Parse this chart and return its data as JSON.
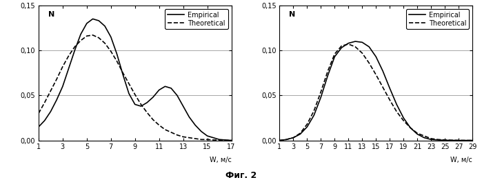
{
  "fig_title": "Фиг. 2",
  "plot1": {
    "xlim": [
      1,
      17
    ],
    "ylim": [
      0.0,
      0.15
    ],
    "xticks": [
      1,
      3,
      5,
      7,
      9,
      11,
      13,
      15,
      17
    ],
    "yticks": [
      0.0,
      0.05,
      0.1,
      0.15
    ],
    "ytick_labels": [
      "0,00",
      "0,05",
      "0,10",
      "0,15"
    ],
    "xlabel": "W, м/с",
    "ylabel": "N",
    "hlines": [
      0.05,
      0.1,
      0.15
    ],
    "empirical_x": [
      1.0,
      1.5,
      2.0,
      2.5,
      3.0,
      3.5,
      4.0,
      4.5,
      5.0,
      5.5,
      6.0,
      6.5,
      7.0,
      7.5,
      8.0,
      8.5,
      9.0,
      9.5,
      10.0,
      10.5,
      11.0,
      11.5,
      12.0,
      12.5,
      13.0,
      13.5,
      14.0,
      14.5,
      15.0,
      15.5,
      16.0,
      16.5,
      17.0
    ],
    "empirical_y": [
      0.015,
      0.022,
      0.032,
      0.045,
      0.06,
      0.08,
      0.1,
      0.118,
      0.13,
      0.135,
      0.133,
      0.127,
      0.115,
      0.096,
      0.073,
      0.052,
      0.04,
      0.038,
      0.042,
      0.048,
      0.056,
      0.06,
      0.058,
      0.05,
      0.038,
      0.026,
      0.017,
      0.01,
      0.005,
      0.003,
      0.001,
      0.0005,
      0.0
    ],
    "theoretical_x": [
      1.0,
      1.5,
      2.0,
      2.5,
      3.0,
      3.5,
      4.0,
      4.5,
      5.0,
      5.5,
      6.0,
      6.5,
      7.0,
      7.5,
      8.0,
      8.5,
      9.0,
      9.5,
      10.0,
      10.5,
      11.0,
      11.5,
      12.0,
      12.5,
      13.0,
      13.5,
      14.0,
      14.5,
      15.0,
      15.5,
      16.0,
      16.5,
      17.0
    ],
    "theoretical_y": [
      0.03,
      0.042,
      0.055,
      0.068,
      0.082,
      0.094,
      0.104,
      0.111,
      0.116,
      0.117,
      0.114,
      0.108,
      0.099,
      0.088,
      0.075,
      0.063,
      0.051,
      0.04,
      0.031,
      0.023,
      0.017,
      0.012,
      0.009,
      0.006,
      0.004,
      0.003,
      0.002,
      0.001,
      0.001,
      0.0005,
      0.0003,
      0.0001,
      0.0
    ]
  },
  "plot2": {
    "xlim": [
      1,
      29
    ],
    "ylim": [
      0.0,
      0.15
    ],
    "xticks": [
      1,
      3,
      5,
      7,
      9,
      11,
      13,
      15,
      17,
      19,
      21,
      23,
      25,
      27,
      29
    ],
    "yticks": [
      0.0,
      0.05,
      0.1,
      0.15
    ],
    "ytick_labels": [
      "0,00",
      "0,05",
      "0,10",
      "0,15"
    ],
    "xlabel": "W, м/с",
    "ylabel": "N",
    "hlines": [
      0.05,
      0.1,
      0.15
    ],
    "empirical_x": [
      1,
      2,
      3,
      4,
      5,
      6,
      7,
      8,
      9,
      10,
      11,
      12,
      13,
      14,
      15,
      16,
      17,
      18,
      19,
      20,
      21,
      22,
      23,
      24,
      25,
      26,
      27,
      28,
      29
    ],
    "empirical_y": [
      0.0,
      0.001,
      0.003,
      0.007,
      0.015,
      0.028,
      0.048,
      0.072,
      0.093,
      0.103,
      0.108,
      0.11,
      0.109,
      0.104,
      0.093,
      0.077,
      0.058,
      0.04,
      0.025,
      0.014,
      0.007,
      0.003,
      0.001,
      0.0005,
      0.0002,
      0.0001,
      0.0,
      0.0,
      0.0
    ],
    "theoretical_x": [
      1,
      2,
      3,
      4,
      5,
      6,
      7,
      8,
      9,
      10,
      11,
      12,
      13,
      14,
      15,
      16,
      17,
      18,
      19,
      20,
      21,
      22,
      23,
      24,
      25,
      26,
      27,
      28,
      29
    ],
    "theoretical_y": [
      0.0,
      0.001,
      0.003,
      0.008,
      0.018,
      0.033,
      0.054,
      0.077,
      0.096,
      0.105,
      0.107,
      0.104,
      0.097,
      0.086,
      0.073,
      0.059,
      0.045,
      0.032,
      0.022,
      0.014,
      0.008,
      0.005,
      0.002,
      0.001,
      0.0005,
      0.0002,
      0.0001,
      0.0,
      0.0
    ]
  },
  "line_color": "#000000",
  "bg_color": "#ffffff",
  "grid_color": "#999999",
  "legend_empirical": "Empirical",
  "legend_theoretical": "Theoretical"
}
